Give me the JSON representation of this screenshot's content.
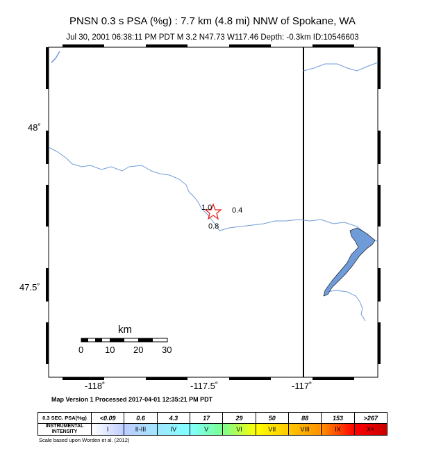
{
  "title": "PNSN 0.3 s PSA (%g) : 7.7 km (4.8 mi) NNW of Spokane, WA",
  "subtitle": "Jul 30, 2001 06:38:11 PM PDT    M 3.2    N47.73 W117.46    Depth: -0.3km    ID:10546603",
  "axes": {
    "lat_labels": [
      "48˚",
      "47.5˚"
    ],
    "lon_labels": [
      "-118˚",
      "-117.5˚",
      "-117˚"
    ]
  },
  "contours": [
    "1.0",
    "0.4",
    "0.8"
  ],
  "scalebar": {
    "unit": "km",
    "ticks": [
      "0",
      "10",
      "20",
      "30"
    ]
  },
  "processed_line": "Map Version 1 Processed 2017-04-01 12:35:21 PM PDT",
  "legend": {
    "row1_header": "0.3 SEC. PSA(%g)",
    "row2_header": "INSTRUMENTAL INTENSITY",
    "values": [
      "<0.09",
      "0.6",
      "4.3",
      "17",
      "29",
      "50",
      "88",
      "153",
      ">267"
    ],
    "intensities": [
      "I",
      "II-III",
      "IV",
      "V",
      "VI",
      "VII",
      "VIII",
      "IX",
      "X+"
    ],
    "colors": [
      "#ffffff",
      "#bfccff",
      "#a0e6ff",
      "#80ffff",
      "#7aff93",
      "#ffff00",
      "#ffc800",
      "#ff9100",
      "#ff0000",
      "#c80000"
    ]
  },
  "footer": "Scale based upon Worden et al. (2012)",
  "colors": {
    "water": "#6f9bd8",
    "epicenter": "#e8231f"
  }
}
